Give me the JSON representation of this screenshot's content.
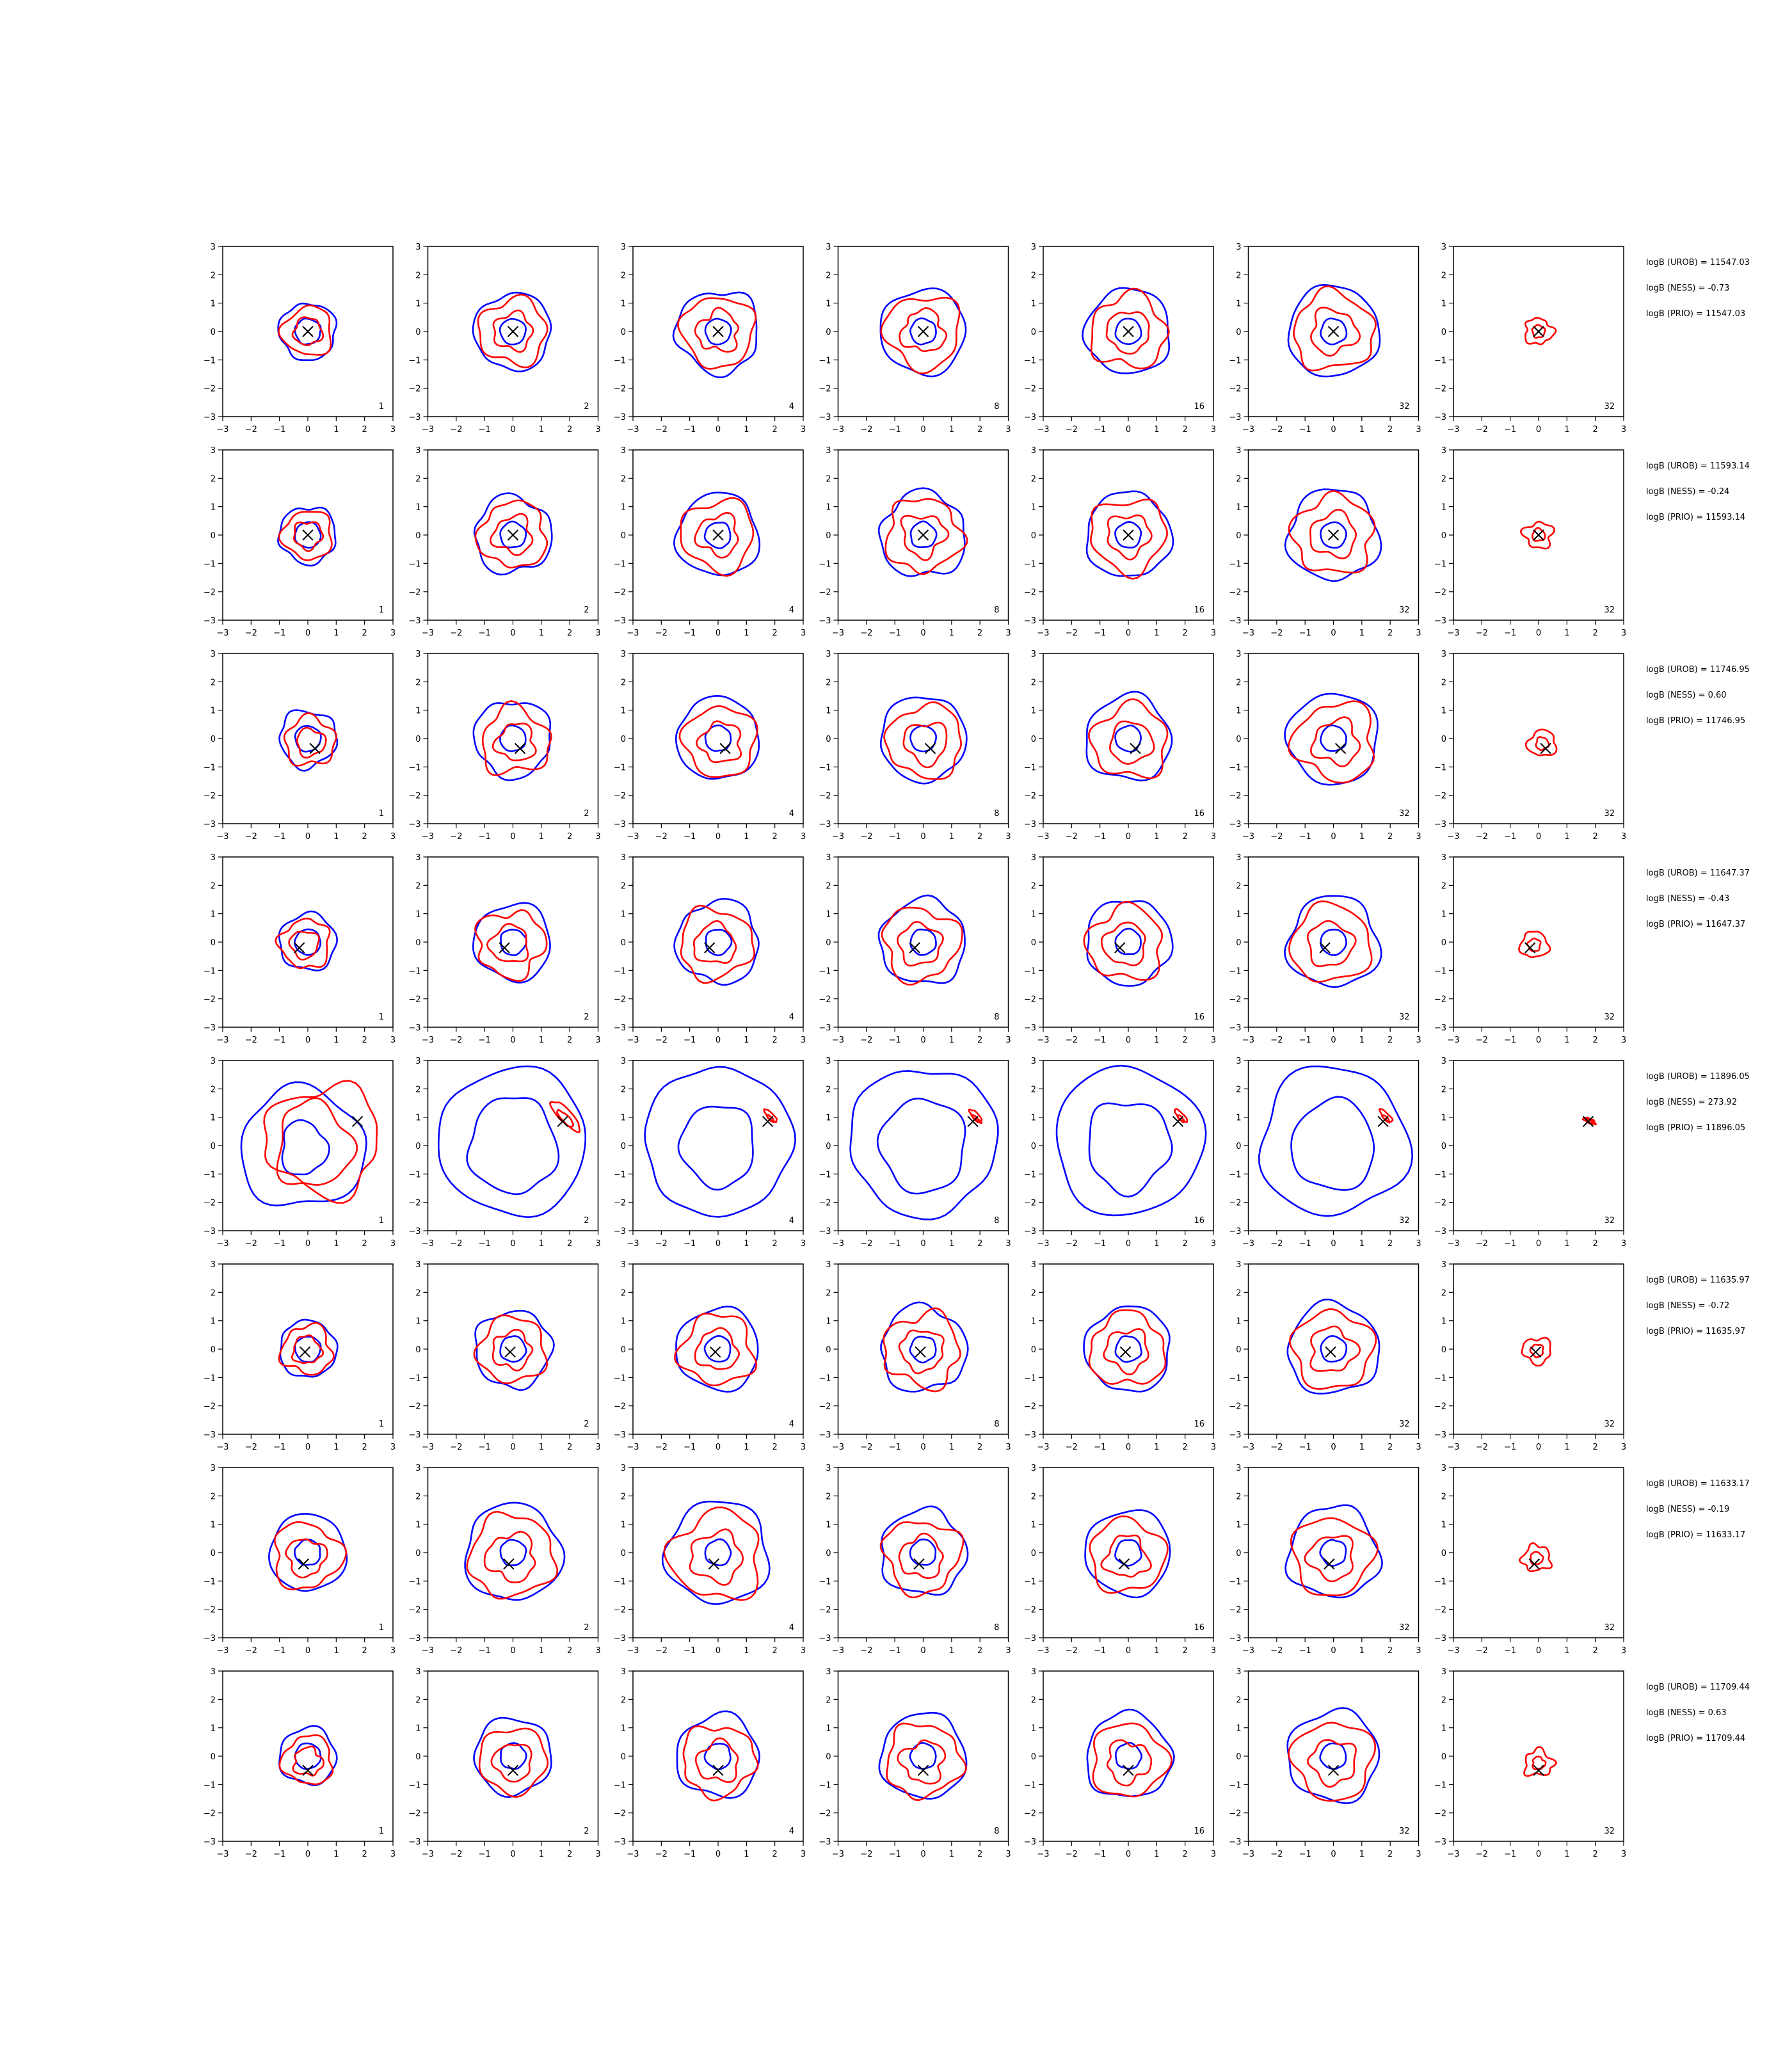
{
  "figure": {
    "columns": [
      "1",
      "2",
      "4",
      "8",
      "16",
      "32",
      "32"
    ],
    "xlim": [
      -3,
      3
    ],
    "ylim": [
      -3,
      3
    ],
    "ticks": [
      -3,
      -2,
      -1,
      0,
      1,
      2,
      3
    ],
    "colors": {
      "outer_contours": "#0000ff",
      "inner_contours": "#ff0000",
      "marker": "#000000"
    }
  },
  "chart_data": {
    "type": "contour",
    "rows": [
      {
        "marker": [
          0.0,
          0.0
        ],
        "stats": [
          "logB (UROB) = 11547.03",
          "logB (NESS) = -0.73",
          "logB (PRIO) = 11547.03"
        ]
      },
      {
        "marker": [
          0.0,
          0.0
        ],
        "stats": [
          "logB (UROB) = 11593.14",
          "logB (NESS) = -0.24",
          "logB (PRIO) = 11593.14"
        ]
      },
      {
        "marker": [
          0.25,
          -0.35
        ],
        "stats": [
          "logB (UROB) = 11746.95",
          "logB (NESS) = 0.60",
          "logB (PRIO) = 11746.95"
        ]
      },
      {
        "marker": [
          -0.3,
          -0.2
        ],
        "stats": [
          "logB (UROB) = 11647.37",
          "logB (NESS) = -0.43",
          "logB (PRIO) = 11647.37"
        ]
      },
      {
        "marker": [
          1.75,
          0.85
        ],
        "stats": [
          "logB (UROB) = 11896.05",
          "logB (NESS) = 273.92",
          "logB (PRIO) = 11896.05"
        ]
      },
      {
        "marker": [
          -0.1,
          -0.1
        ],
        "stats": [
          "logB (UROB) = 11635.97",
          "logB (NESS) = -0.72",
          "logB (PRIO) = 11635.97"
        ]
      },
      {
        "marker": [
          -0.15,
          -0.4
        ],
        "stats": [
          "logB (UROB) = 11633.17",
          "logB (NESS) = -0.19",
          "logB (PRIO) = 11633.17"
        ]
      },
      {
        "marker": [
          0.0,
          -0.5
        ],
        "stats": [
          "logB (UROB) = 11709.44",
          "logB (NESS) = 0.63",
          "logB (PRIO) = 11709.44"
        ]
      }
    ]
  }
}
